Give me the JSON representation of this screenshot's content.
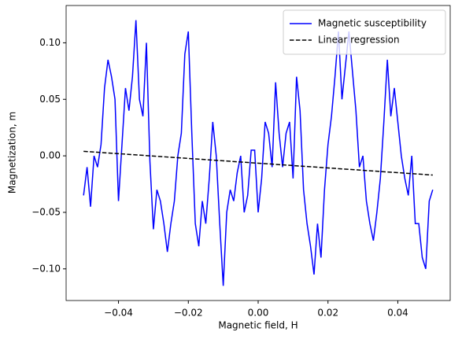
{
  "chart_data": {
    "type": "line",
    "xlabel": "Magnetic field, H",
    "ylabel": "Magnetization, m",
    "xlim": [
      -0.055,
      0.055
    ],
    "ylim": [
      -0.128,
      0.133
    ],
    "xticks": [
      {
        "value": -0.04,
        "label": "−0.04"
      },
      {
        "value": -0.02,
        "label": "−0.02"
      },
      {
        "value": 0,
        "label": "0.00"
      },
      {
        "value": 0.02,
        "label": "0.02"
      },
      {
        "value": 0.04,
        "label": "0.04"
      }
    ],
    "yticks": [
      {
        "value": -0.1,
        "label": "−0.10"
      },
      {
        "value": -0.05,
        "label": "−0.05"
      },
      {
        "value": 0,
        "label": "0.00"
      },
      {
        "value": 0.05,
        "label": "0.05"
      },
      {
        "value": 0.1,
        "label": "0.10"
      }
    ],
    "legend": "upper right",
    "series": [
      {
        "name": "Magnetic susceptibility",
        "color": "#0000ff",
        "dash": "solid",
        "x": [
          -0.05,
          -0.049,
          -0.048,
          -0.047,
          -0.046,
          -0.045,
          -0.044,
          -0.043,
          -0.042,
          -0.041,
          -0.04,
          -0.039,
          -0.038,
          -0.037,
          -0.036,
          -0.035,
          -0.034,
          -0.033,
          -0.032,
          -0.031,
          -0.03,
          -0.029,
          -0.028,
          -0.027,
          -0.026,
          -0.025,
          -0.024,
          -0.023,
          -0.022,
          -0.021,
          -0.02,
          -0.019,
          -0.018,
          -0.017,
          -0.016,
          -0.015,
          -0.014,
          -0.013,
          -0.012,
          -0.011,
          -0.01,
          -0.009,
          -0.008,
          -0.007,
          -0.006,
          -0.005,
          -0.004,
          -0.003,
          -0.002,
          -0.001,
          0,
          0.001,
          0.002,
          0.003,
          0.004,
          0.005,
          0.006,
          0.007,
          0.008,
          0.009,
          0.01,
          0.011,
          0.012,
          0.013,
          0.014,
          0.015,
          0.016,
          0.017,
          0.018,
          0.019,
          0.02,
          0.021,
          0.022,
          0.023,
          0.024,
          0.025,
          0.026,
          0.027,
          0.028,
          0.029,
          0.03,
          0.031,
          0.032,
          0.033,
          0.034,
          0.035,
          0.036,
          0.037,
          0.038,
          0.039,
          0.04,
          0.041,
          0.042,
          0.043,
          0.044,
          0.045,
          0.046,
          0.047,
          0.048,
          0.049,
          0.05
        ],
        "values": [
          -0.035,
          -0.01,
          -0.045,
          0.0,
          -0.01,
          0.01,
          0.06,
          0.085,
          0.07,
          0.05,
          -0.04,
          0.01,
          0.06,
          0.04,
          0.07,
          0.12,
          0.05,
          0.035,
          0.1,
          -0.005,
          -0.065,
          -0.03,
          -0.04,
          -0.06,
          -0.085,
          -0.06,
          -0.04,
          0.0,
          0.02,
          0.09,
          0.11,
          0.02,
          -0.06,
          -0.08,
          -0.04,
          -0.06,
          -0.02,
          0.03,
          0.0,
          -0.06,
          -0.115,
          -0.05,
          -0.03,
          -0.04,
          -0.015,
          0.0,
          -0.05,
          -0.035,
          0.005,
          0.005,
          -0.05,
          -0.02,
          0.03,
          0.02,
          -0.01,
          0.065,
          0.02,
          -0.01,
          0.02,
          0.03,
          -0.02,
          0.07,
          0.04,
          -0.03,
          -0.06,
          -0.08,
          -0.105,
          -0.06,
          -0.09,
          -0.03,
          0.01,
          0.035,
          0.07,
          0.11,
          0.05,
          0.08,
          0.11,
          0.075,
          0.04,
          -0.01,
          0.0,
          -0.04,
          -0.06,
          -0.075,
          -0.05,
          -0.02,
          0.03,
          0.085,
          0.035,
          0.06,
          0.03,
          0.0,
          -0.02,
          -0.035,
          0.0,
          -0.06,
          -0.06,
          -0.09,
          -0.1,
          -0.04,
          -0.03
        ]
      },
      {
        "name": "Linear regression",
        "color": "#000000",
        "dash": "dashed",
        "x": [
          -0.05,
          0.05
        ],
        "values": [
          0.004,
          -0.017
        ]
      }
    ]
  }
}
